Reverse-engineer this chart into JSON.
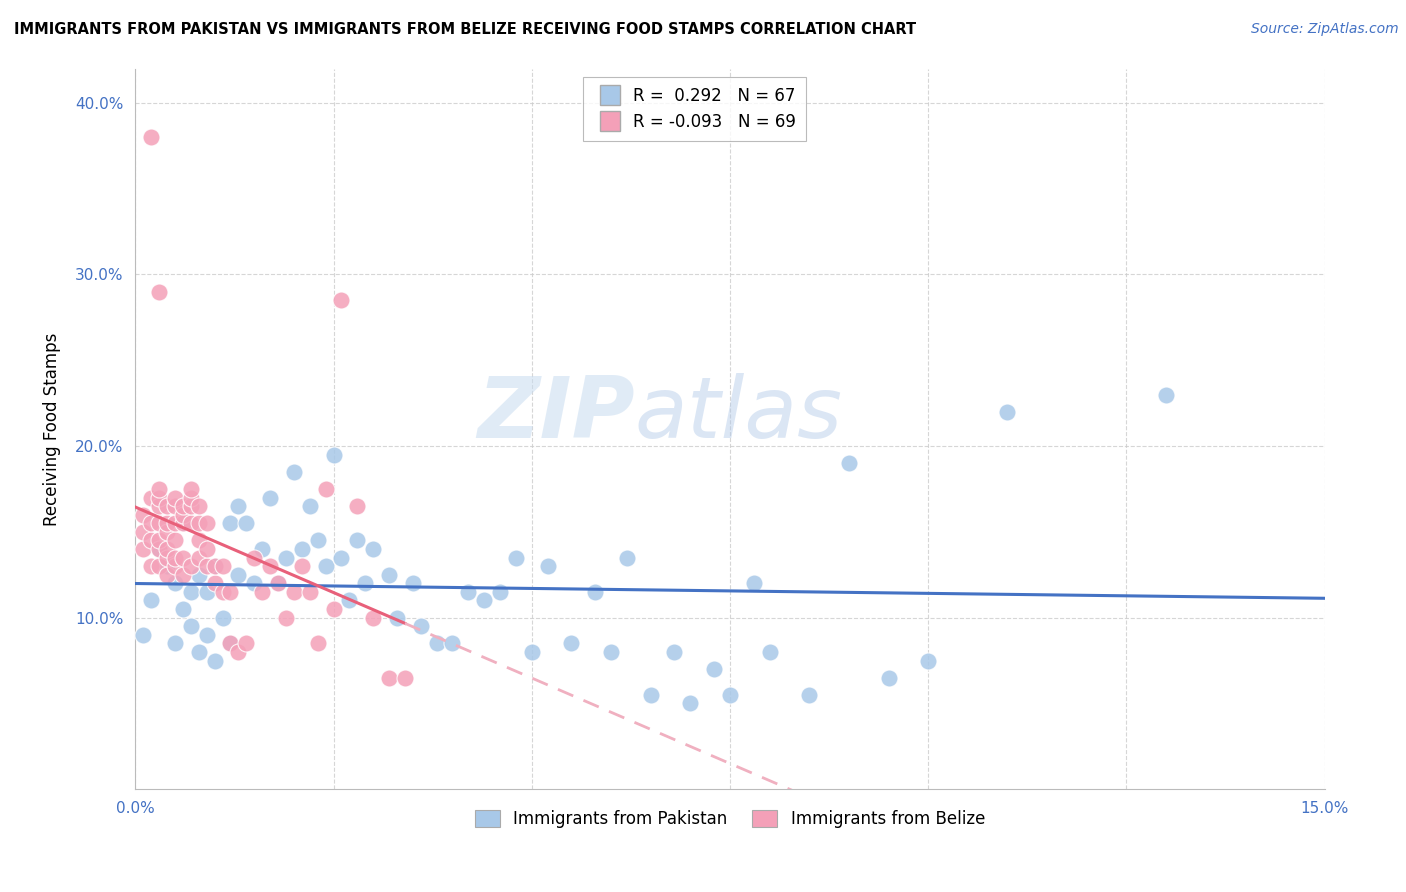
{
  "title": "IMMIGRANTS FROM PAKISTAN VS IMMIGRANTS FROM BELIZE RECEIVING FOOD STAMPS CORRELATION CHART",
  "source": "Source: ZipAtlas.com",
  "ylabel": "Receiving Food Stamps",
  "x_min": 0.0,
  "x_max": 0.15,
  "y_min": 0.0,
  "y_max": 0.42,
  "y_ticks": [
    0.1,
    0.2,
    0.3,
    0.4
  ],
  "pakistan_R": 0.292,
  "pakistan_N": 67,
  "belize_R": -0.093,
  "belize_N": 69,
  "pakistan_color": "#A8C8E8",
  "belize_color": "#F4A0B8",
  "pakistan_line_color": "#4472C4",
  "belize_line_color": "#E8607A",
  "belize_line_dashed_color": "#F0B0C0",
  "watermark_zip": "ZIP",
  "watermark_atlas": "atlas",
  "pakistan_scatter_x": [
    0.001,
    0.002,
    0.003,
    0.004,
    0.005,
    0.005,
    0.006,
    0.006,
    0.007,
    0.007,
    0.008,
    0.008,
    0.009,
    0.009,
    0.01,
    0.01,
    0.011,
    0.012,
    0.012,
    0.013,
    0.013,
    0.014,
    0.015,
    0.016,
    0.017,
    0.018,
    0.019,
    0.02,
    0.021,
    0.022,
    0.023,
    0.024,
    0.025,
    0.026,
    0.027,
    0.028,
    0.029,
    0.03,
    0.032,
    0.033,
    0.035,
    0.036,
    0.038,
    0.04,
    0.042,
    0.044,
    0.046,
    0.048,
    0.05,
    0.052,
    0.055,
    0.058,
    0.06,
    0.062,
    0.065,
    0.068,
    0.07,
    0.073,
    0.075,
    0.078,
    0.08,
    0.085,
    0.09,
    0.095,
    0.1,
    0.11,
    0.13
  ],
  "pakistan_scatter_y": [
    0.09,
    0.11,
    0.14,
    0.13,
    0.085,
    0.12,
    0.155,
    0.105,
    0.095,
    0.115,
    0.08,
    0.125,
    0.09,
    0.115,
    0.075,
    0.13,
    0.1,
    0.155,
    0.085,
    0.165,
    0.125,
    0.155,
    0.12,
    0.14,
    0.17,
    0.12,
    0.135,
    0.185,
    0.14,
    0.165,
    0.145,
    0.13,
    0.195,
    0.135,
    0.11,
    0.145,
    0.12,
    0.14,
    0.125,
    0.1,
    0.12,
    0.095,
    0.085,
    0.085,
    0.115,
    0.11,
    0.115,
    0.135,
    0.08,
    0.13,
    0.085,
    0.115,
    0.08,
    0.135,
    0.055,
    0.08,
    0.05,
    0.07,
    0.055,
    0.12,
    0.08,
    0.055,
    0.19,
    0.065,
    0.075,
    0.22,
    0.23
  ],
  "belize_scatter_x": [
    0.001,
    0.001,
    0.001,
    0.002,
    0.002,
    0.002,
    0.002,
    0.003,
    0.003,
    0.003,
    0.003,
    0.003,
    0.003,
    0.003,
    0.004,
    0.004,
    0.004,
    0.004,
    0.004,
    0.004,
    0.005,
    0.005,
    0.005,
    0.005,
    0.005,
    0.005,
    0.006,
    0.006,
    0.006,
    0.006,
    0.006,
    0.007,
    0.007,
    0.007,
    0.007,
    0.007,
    0.008,
    0.008,
    0.008,
    0.008,
    0.009,
    0.009,
    0.009,
    0.01,
    0.01,
    0.011,
    0.011,
    0.012,
    0.012,
    0.013,
    0.014,
    0.015,
    0.016,
    0.017,
    0.018,
    0.019,
    0.02,
    0.021,
    0.022,
    0.023,
    0.024,
    0.025,
    0.026,
    0.028,
    0.03,
    0.032,
    0.034,
    0.002,
    0.003
  ],
  "belize_scatter_y": [
    0.14,
    0.15,
    0.16,
    0.13,
    0.145,
    0.155,
    0.17,
    0.13,
    0.14,
    0.145,
    0.155,
    0.165,
    0.17,
    0.175,
    0.125,
    0.135,
    0.14,
    0.15,
    0.155,
    0.165,
    0.13,
    0.135,
    0.145,
    0.155,
    0.165,
    0.17,
    0.125,
    0.135,
    0.155,
    0.16,
    0.165,
    0.13,
    0.155,
    0.165,
    0.17,
    0.175,
    0.135,
    0.145,
    0.155,
    0.165,
    0.13,
    0.14,
    0.155,
    0.12,
    0.13,
    0.115,
    0.13,
    0.085,
    0.115,
    0.08,
    0.085,
    0.135,
    0.115,
    0.13,
    0.12,
    0.1,
    0.115,
    0.13,
    0.115,
    0.085,
    0.175,
    0.105,
    0.285,
    0.165,
    0.1,
    0.065,
    0.065,
    0.38,
    0.29
  ]
}
